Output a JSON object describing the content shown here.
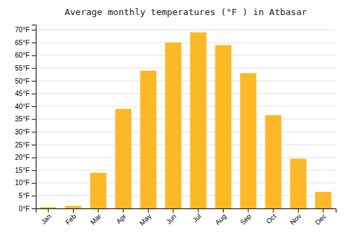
{
  "chart_data": {
    "type": "bar",
    "title": "Average monthly temperatures (°F ) in Atbasar",
    "categories": [
      "Jan",
      "Feb",
      "Mar",
      "Apr",
      "May",
      "Jun",
      "Jul",
      "Aug",
      "Sep",
      "Oct",
      "Nov",
      "Dec"
    ],
    "values": [
      0.5,
      1.0,
      14.0,
      39.0,
      54.0,
      65.0,
      69.0,
      64.0,
      53.0,
      36.5,
      19.5,
      6.5
    ],
    "color": "#FDB827",
    "ylim": [
      0,
      72
    ],
    "yticks": [
      {
        "value": 0,
        "label": "0°F"
      },
      {
        "value": 5,
        "label": "5°F"
      },
      {
        "value": 10,
        "label": "10°F"
      },
      {
        "value": 15,
        "label": "15°F"
      },
      {
        "value": 20,
        "label": "20°F"
      },
      {
        "value": 25,
        "label": "25°F"
      },
      {
        "value": 30,
        "label": "30°F"
      },
      {
        "value": 35,
        "label": "35°F"
      },
      {
        "value": 40,
        "label": "40°F"
      },
      {
        "value": 45,
        "label": "45°F"
      },
      {
        "value": 50,
        "label": "50°F"
      },
      {
        "value": 55,
        "label": "55°F"
      },
      {
        "value": 60,
        "label": "60°F"
      },
      {
        "value": 65,
        "label": "65°F"
      },
      {
        "value": 70,
        "label": "70°F"
      }
    ],
    "grid": true
  }
}
